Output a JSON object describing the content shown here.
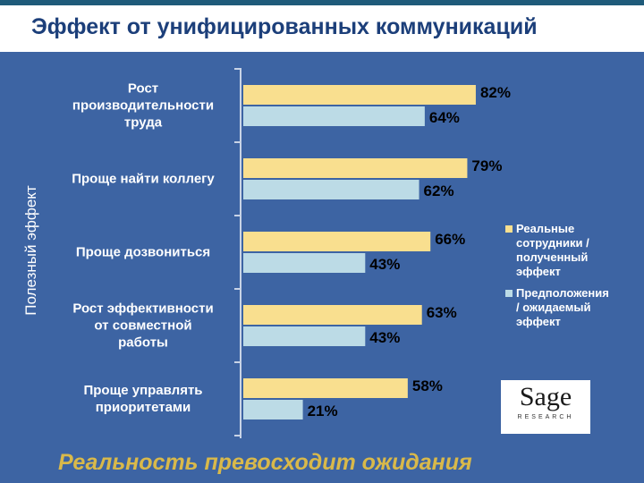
{
  "chart_data": {
    "type": "hbar",
    "title": "Эффект от унифицированных коммуникаций",
    "y_label": "Полезный эффект",
    "categories": [
      "Рост\nпроизводительности\nтруда",
      "Проще найти коллегу",
      "Проще дозвониться",
      "Рост эффективности\nот совместной\nработы",
      "Проще управлять\nприоритетами"
    ],
    "series": [
      {
        "name": "Реальные\nсотрудники /\nполученный\nэффект",
        "color": "#f9df8f",
        "values": [
          82,
          79,
          66,
          63,
          58
        ],
        "value_labels": [
          "82%",
          "79%",
          "66%",
          "63%",
          "58%"
        ]
      },
      {
        "name": "Предположения\n/ ожидаемый\nэффект",
        "color": "#bcdbe6",
        "values": [
          64,
          62,
          43,
          43,
          21
        ],
        "value_labels": [
          "64%",
          "62%",
          "43%",
          "43%",
          "21%"
        ]
      }
    ],
    "legend": "right",
    "caption": "Реальность превосходит ожидания",
    "logo": {
      "text": "Sage",
      "subtext": "RESEARCH"
    }
  }
}
